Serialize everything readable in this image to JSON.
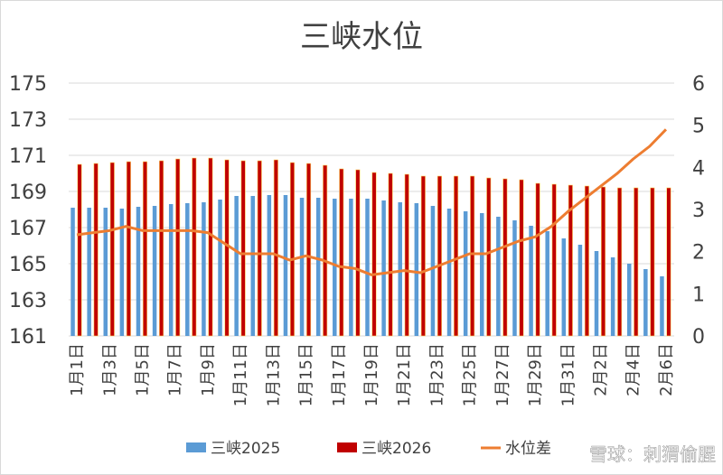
{
  "chart_data": {
    "type": "bar",
    "title": "三峡水位",
    "categories": [
      "1月1日",
      "1月2日",
      "1月3日",
      "1月4日",
      "1月5日",
      "1月6日",
      "1月7日",
      "1月8日",
      "1月9日",
      "1月10日",
      "1月11日",
      "1月12日",
      "1月13日",
      "1月14日",
      "1月15日",
      "1月16日",
      "1月17日",
      "1月18日",
      "1月19日",
      "1月20日",
      "1月21日",
      "1月22日",
      "1月23日",
      "1月24日",
      "1月25日",
      "1月26日",
      "1月27日",
      "1月28日",
      "1月29日",
      "1月30日",
      "1月31日",
      "2月1日",
      "2月2日",
      "2月3日",
      "2月4日",
      "2月5日",
      "2月6日"
    ],
    "xtick_labels": [
      "1月1日",
      "1月3日",
      "1月5日",
      "1月7日",
      "1月9日",
      "1月11日",
      "1月13日",
      "1月15日",
      "1月17日",
      "1月19日",
      "1月21日",
      "1月23日",
      "1月25日",
      "1月27日",
      "1月29日",
      "1月31日",
      "2月2日",
      "2月4日",
      "2月6日"
    ],
    "series": [
      {
        "name": "三峡2025",
        "kind": "bar",
        "axis": "left",
        "color": "#5b9bd5",
        "values": [
          168.1,
          168.1,
          168.1,
          168.05,
          168.15,
          168.2,
          168.3,
          168.35,
          168.4,
          168.55,
          168.75,
          168.75,
          168.8,
          168.8,
          168.65,
          168.65,
          168.6,
          168.6,
          168.6,
          168.5,
          168.4,
          168.35,
          168.2,
          168.05,
          167.9,
          167.8,
          167.6,
          167.4,
          167.1,
          166.8,
          166.4,
          166.05,
          165.7,
          165.35,
          165.0,
          164.7,
          164.3
        ]
      },
      {
        "name": "三峡2026",
        "kind": "bar",
        "axis": "left",
        "color": "#c00000",
        "values": [
          170.5,
          170.55,
          170.6,
          170.65,
          170.65,
          170.7,
          170.8,
          170.85,
          170.85,
          170.75,
          170.7,
          170.7,
          170.75,
          170.6,
          170.55,
          170.45,
          170.25,
          170.2,
          170.05,
          170.0,
          169.95,
          169.85,
          169.85,
          169.85,
          169.85,
          169.75,
          169.7,
          169.65,
          169.45,
          169.4,
          169.35,
          169.3,
          169.25,
          169.2,
          169.2,
          169.2,
          169.2
        ]
      },
      {
        "name": "水位差",
        "kind": "line",
        "axis": "right",
        "color": "#ed7d31",
        "values": [
          2.4,
          2.45,
          2.5,
          2.6,
          2.5,
          2.5,
          2.5,
          2.5,
          2.45,
          2.2,
          1.95,
          1.95,
          1.95,
          1.8,
          1.9,
          1.8,
          1.65,
          1.6,
          1.45,
          1.5,
          1.55,
          1.5,
          1.65,
          1.8,
          1.95,
          1.95,
          2.1,
          2.25,
          2.35,
          2.6,
          2.95,
          3.25,
          3.55,
          3.85,
          4.2,
          4.5,
          4.9
        ]
      }
    ],
    "y_left": {
      "min": 161,
      "max": 175,
      "ticks": [
        161,
        163,
        165,
        167,
        169,
        171,
        173,
        175
      ]
    },
    "y_right": {
      "min": 0,
      "max": 6,
      "ticks": [
        0,
        1,
        2,
        3,
        4,
        5,
        6
      ]
    },
    "grid": "horizontal",
    "legend_position": "bottom"
  },
  "watermark": "雪球：刺猬偷腥"
}
